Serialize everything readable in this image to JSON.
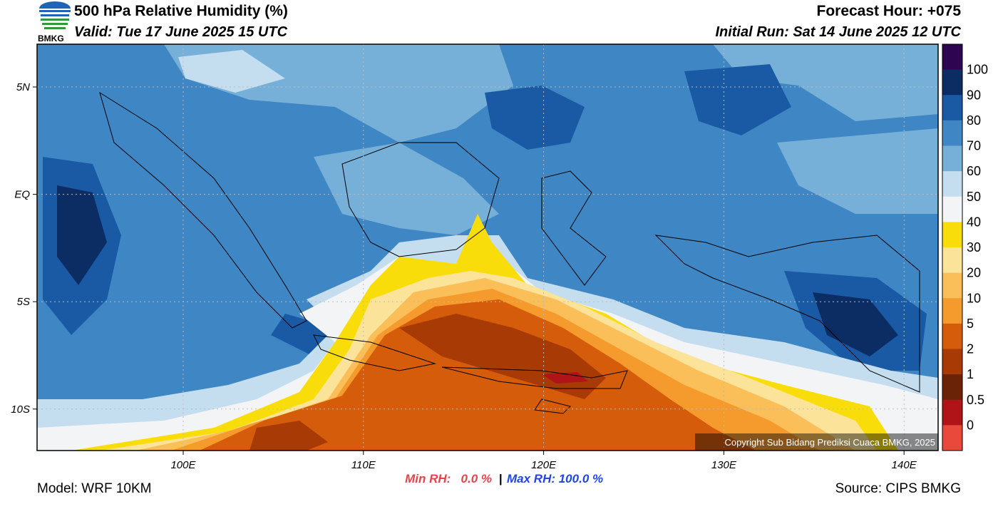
{
  "header": {
    "title": "500 hPa Relative Humidity (%)",
    "valid": "Valid: Tue 17 June 2025 15 UTC",
    "forecast_hour": "Forecast Hour: +075",
    "initial_run": "Initial Run: Sat 14 June 2025 12 UTC",
    "logo_text": "BMKG"
  },
  "map": {
    "lat_labels": [
      "5N",
      "EQ",
      "5S",
      "10S"
    ],
    "lon_labels": [
      "100E",
      "110E",
      "120E",
      "130E",
      "140E"
    ],
    "copyright": "Copyright Sub Bidang Prediksi Cuaca BMKG, 2025"
  },
  "colorbar": {
    "labels": [
      "100",
      "90",
      "80",
      "70",
      "60",
      "50",
      "40",
      "30",
      "20",
      "10",
      "5",
      "2",
      "1",
      "0.5",
      "0"
    ],
    "colors": [
      "#2d0550",
      "#0c2d63",
      "#1a5aa5",
      "#3f86c4",
      "#76b0d9",
      "#c4ddef",
      "#f2f4f6",
      "#f9dd0a",
      "#fbe39a",
      "#fbbf5a",
      "#f59a2c",
      "#d45c0b",
      "#a83a06",
      "#6b2308",
      "#b01419",
      "#e8493a"
    ]
  },
  "footer": {
    "min_rh": "Min RH:   0.0 %",
    "separator": "|",
    "max_rh": "Max RH: 100.0 %",
    "model": "Model: WRF 10KM",
    "source": "Source: CIPS BMKG"
  }
}
